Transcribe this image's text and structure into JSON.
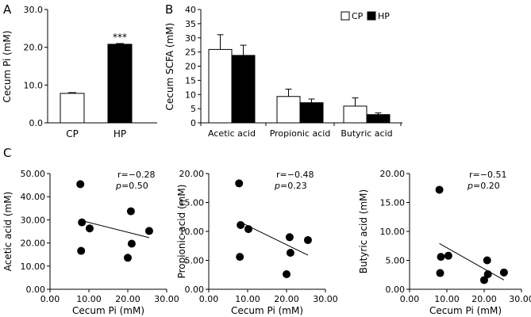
{
  "chart_data": [
    {
      "id": "A",
      "panel_label": "A",
      "type": "bar",
      "categories": [
        "CP",
        "HP"
      ],
      "values": [
        7.8,
        20.8
      ],
      "errors": [
        0.2,
        0.2
      ],
      "colors": [
        "#ffffff",
        "#000000"
      ],
      "significance": [
        "",
        "***"
      ],
      "ylabel": "Cecum Pi (mM)",
      "ylim": [
        0,
        30
      ],
      "yticks": [
        "0.0",
        "10.0",
        "20.0",
        "30.0"
      ]
    },
    {
      "id": "B",
      "panel_label": "B",
      "type": "bar",
      "categories": [
        "Acetic acid",
        "Propionic acid",
        "Butyric acid"
      ],
      "series": [
        {
          "name": "CP",
          "color": "#ffffff",
          "values": [
            25.9,
            9.3,
            5.9
          ],
          "errors": [
            5.2,
            2.6,
            2.9
          ]
        },
        {
          "name": "HP",
          "color": "#000000",
          "values": [
            23.8,
            7.1,
            2.9
          ],
          "errors": [
            3.6,
            1.3,
            0.6
          ]
        }
      ],
      "ylabel": "Cecum SCFA (mM)",
      "ylim": [
        0,
        40
      ],
      "yticks": [
        "0",
        "5",
        "10",
        "15",
        "20",
        "25",
        "30",
        "35",
        "40"
      ]
    },
    {
      "id": "C1",
      "panel_label": "C",
      "type": "scatter",
      "x": [
        7.8,
        8.0,
        8.2,
        10.2,
        20.0,
        20.8,
        21.0,
        25.5
      ],
      "y": [
        45.4,
        16.6,
        28.9,
        26.3,
        13.6,
        33.7,
        19.7,
        25.2
      ],
      "trendline": {
        "x": [
          7.8,
          25.5
        ],
        "y": [
          29.8,
          22.3
        ]
      },
      "r_text": "r=−0.28",
      "p_label": "p",
      "p_value": "=0.50",
      "xlabel": "Cecum Pi (mM)",
      "ylabel": "Acetic acid (mM)",
      "xlim": [
        0,
        30
      ],
      "ylim": [
        0,
        50
      ],
      "xticks": [
        "0.00",
        "10.00",
        "20.00",
        "30.00"
      ],
      "yticks": [
        "0.00",
        "10.00",
        "20.00",
        "30.00",
        "40.00",
        "50.00"
      ]
    },
    {
      "id": "C2",
      "type": "scatter",
      "x": [
        7.8,
        8.0,
        8.2,
        10.2,
        20.0,
        20.8,
        21.0,
        25.5
      ],
      "y": [
        18.3,
        5.6,
        11.1,
        10.4,
        2.6,
        9.0,
        6.3,
        8.5
      ],
      "trendline": {
        "x": [
          7.8,
          25.5
        ],
        "y": [
          11.7,
          5.9
        ]
      },
      "r_text": "r=−0.48",
      "p_label": "p",
      "p_value": "=0.23",
      "xlabel": "Cecum Pi (mM)",
      "ylabel": "Propionic acid (mM)",
      "xlim": [
        0,
        30
      ],
      "ylim": [
        0,
        20
      ],
      "xticks": [
        "0.00",
        "10.00",
        "20.00",
        "30.00"
      ],
      "yticks": [
        "0.00",
        "5.00",
        "10.00",
        "15.00",
        "20.00"
      ]
    },
    {
      "id": "C3",
      "type": "scatter",
      "x": [
        8.0,
        8.2,
        8.4,
        10.4,
        20.0,
        20.8,
        21.0,
        25.3
      ],
      "y": [
        17.2,
        2.8,
        5.6,
        5.8,
        1.6,
        5.0,
        2.6,
        2.9
      ],
      "trendline": {
        "x": [
          8.0,
          25.3
        ],
        "y": [
          7.9,
          1.6
        ]
      },
      "r_text": "r=−0.51",
      "p_label": "p",
      "p_value": "=0.20",
      "xlabel": "Cecum Pi (mM)",
      "ylabel": "Butyric acid (mM)",
      "xlim": [
        0,
        30
      ],
      "ylim": [
        0,
        20
      ],
      "xticks": [
        "0.00",
        "10.00",
        "20.00",
        "30.00"
      ],
      "yticks": [
        "0.00",
        "5.00",
        "10.00",
        "15.00",
        "20.00"
      ]
    }
  ]
}
